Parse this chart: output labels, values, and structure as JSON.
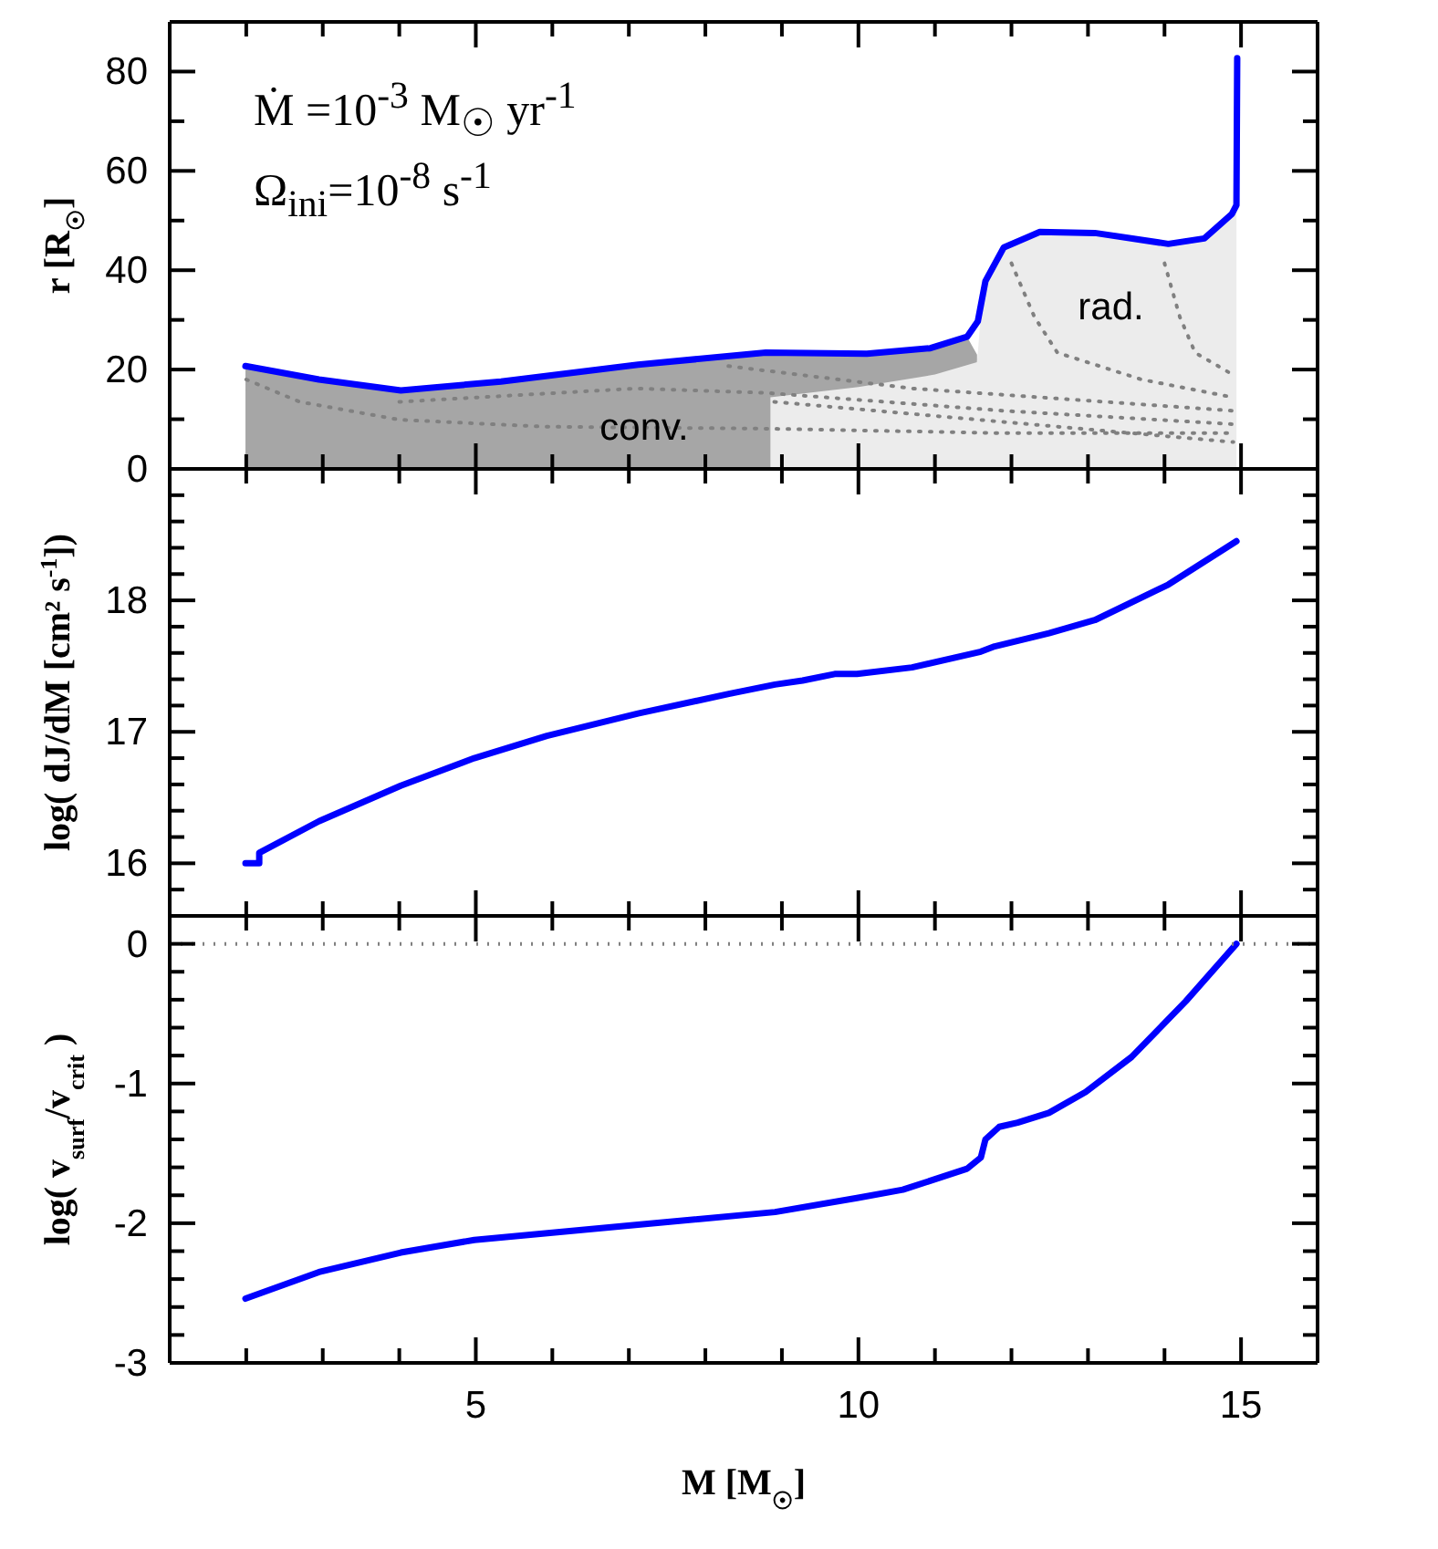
{
  "chart_data": [
    {
      "type": "line",
      "ylabel": "r [R$_{☉}$]",
      "xlim": [
        1,
        16
      ],
      "ylim": [
        0,
        90
      ],
      "tick_labels": "y",
      "xticks": [
        {
          "value": 2,
          "label": null
        },
        {
          "value": 3,
          "label": null
        },
        {
          "value": 4,
          "label": null
        },
        5,
        {
          "value": 6,
          "label": null
        },
        {
          "value": 7,
          "label": null
        },
        {
          "value": 8,
          "label": null
        },
        {
          "value": 9,
          "label": null
        },
        10,
        {
          "value": 11,
          "label": null
        },
        {
          "value": 12,
          "label": null
        },
        {
          "value": 13,
          "label": null
        },
        {
          "value": 14,
          "label": null
        },
        15
      ],
      "yticks": [
        0,
        {
          "value": 10,
          "label": null
        },
        20,
        {
          "value": 30,
          "label": null
        },
        40,
        {
          "value": 50,
          "label": null
        },
        60,
        {
          "value": 70,
          "label": null
        },
        80
      ],
      "annotations": [
        "Ṁ  =10$^{-3}$ M$_{☉}$ yr$^{-1}$",
        "Ω$_{ini}$=10$^{-8}$ s$^{-1}$",
        {
          "text": "conv.",
          "x": 7.2,
          "y": 8
        },
        "rad."
      ],
      "series": [
        {
          "type": "area",
          "color": "#a6a6a6",
          "x": [
            1.99,
            2.95,
            4.02,
            5.33,
            7.12,
            8.79,
            10.11,
            10.94,
            11.42,
            11.55
          ],
          "values": [
            20.7,
            18.0,
            15.8,
            17.6,
            21.0,
            23.4,
            23.2,
            24.3,
            26.6,
            23.0
          ]
        },
        {
          "type": "area",
          "color": "#ececec",
          "x": [
            8.85,
            10.0,
            11.0,
            11.55,
            11.6,
            11.66,
            11.9,
            12.37,
            13.09,
            14.05,
            14.52,
            14.88,
            14.94
          ],
          "values": [
            14.4,
            16.5,
            19.0,
            21.5,
            31.0,
            37.8,
            44.6,
            47.7,
            47.5,
            45.3,
            46.4,
            51.3,
            53.1
          ]
        },
        {
          "color": "#808080",
          "line_style": "dotted",
          "x": [
            2.0,
            2.7,
            4.0,
            5.9,
            8.8,
            11.9,
            14.9
          ],
          "values": [
            18.0,
            13.5,
            9.9,
            8.5,
            8.1,
            7.2,
            7.2
          ]
        },
        {
          "color": "#808080",
          "line_style": "dotted",
          "x": [
            4.0,
            7.1,
            8.8,
            11.9,
            14.9
          ],
          "values": [
            13.5,
            16.2,
            15.3,
            11.7,
            9.0
          ]
        },
        {
          "color": "#808080",
          "line_style": "dotted",
          "x": [
            8.3,
            10.7,
            14.9
          ],
          "values": [
            20.7,
            16.2,
            11.7
          ]
        },
        {
          "color": "#808080",
          "line_style": "dotted",
          "x": [
            8.9,
            14.9
          ],
          "values": [
            13.5,
            5.4
          ]
        },
        {
          "color": "#808080",
          "line_style": "dotted",
          "x": [
            12.0,
            12.3,
            12.6,
            13.7,
            14.9
          ],
          "values": [
            41.4,
            30.6,
            23.4,
            18.0,
            14.4
          ]
        },
        {
          "color": "#808080",
          "line_style": "dotted",
          "x": [
            14.0,
            14.2,
            14.4,
            14.9
          ],
          "values": [
            41.4,
            30.6,
            23.4,
            18.9
          ]
        },
        {
          "color": "#0000ff",
          "x": [
            1.99,
            2.95,
            4.02,
            5.33,
            7.12,
            8.79,
            10.11,
            10.94,
            11.42,
            11.56,
            11.66,
            11.9,
            12.37,
            13.09,
            14.05,
            14.52,
            14.88,
            14.94,
            14.95
          ],
          "values": [
            20.7,
            18.0,
            15.8,
            17.6,
            21.0,
            23.4,
            23.2,
            24.3,
            26.6,
            29.7,
            37.8,
            44.6,
            47.7,
            47.5,
            45.3,
            46.4,
            51.3,
            53.1,
            82.7
          ]
        }
      ]
    },
    {
      "type": "line",
      "ylabel": "log( dJ/dM [cm² s$^{-1}$])",
      "xlim": [
        1,
        16
      ],
      "ylim": [
        15.6,
        19
      ],
      "tick_labels": "y",
      "xticks": [
        {
          "value": 2,
          "label": null
        },
        {
          "value": 3,
          "label": null
        },
        {
          "value": 4,
          "label": null
        },
        5,
        {
          "value": 6,
          "label": null
        },
        {
          "value": 7,
          "label": null
        },
        {
          "value": 8,
          "label": null
        },
        {
          "value": 9,
          "label": null
        },
        10,
        {
          "value": 11,
          "label": null
        },
        {
          "value": 12,
          "label": null
        },
        {
          "value": 13,
          "label": null
        },
        {
          "value": 14,
          "label": null
        },
        15
      ],
      "yticks": [
        {
          "value": 15.8,
          "label": null
        },
        16,
        {
          "value": 16.2,
          "label": null
        },
        {
          "value": 16.4,
          "label": null
        },
        {
          "value": 16.6,
          "label": null
        },
        {
          "value": 16.8,
          "label": null
        },
        17,
        {
          "value": 17.2,
          "label": null
        },
        {
          "value": 17.4,
          "label": null
        },
        {
          "value": 17.6,
          "label": null
        },
        {
          "value": 17.8,
          "label": null
        },
        18,
        {
          "value": 18.2,
          "label": null
        },
        {
          "value": 18.4,
          "label": null
        },
        {
          "value": 18.6,
          "label": null
        },
        {
          "value": 18.8,
          "label": null
        }
      ],
      "series": [
        {
          "color": "#0000ff",
          "x": [
            1.99,
            2.17,
            2.17,
            2.95,
            4.02,
            4.98,
            5.93,
            7.12,
            8.32,
            8.91,
            9.27,
            9.69,
            9.98,
            10.7,
            11.6,
            11.78,
            12.49,
            13.09,
            14.05,
            14.94
          ],
          "values": [
            16.0,
            16.0,
            16.08,
            16.32,
            16.59,
            16.8,
            16.97,
            17.14,
            17.29,
            17.36,
            17.39,
            17.44,
            17.44,
            17.49,
            17.61,
            17.65,
            17.75,
            17.85,
            18.12,
            18.45
          ]
        }
      ]
    },
    {
      "type": "line",
      "ylabel": "log( v$_{surf}$/v$_{crit}$ )",
      "xlabel": "M  [M$_{☉}$]",
      "xlim": [
        1,
        16
      ],
      "ylim": [
        -3,
        0.2
      ],
      "xticks": [
        {
          "value": 2,
          "label": null
        },
        {
          "value": 3,
          "label": null
        },
        {
          "value": 4,
          "label": null
        },
        5,
        {
          "value": 6,
          "label": null
        },
        {
          "value": 7,
          "label": null
        },
        {
          "value": 8,
          "label": null
        },
        {
          "value": 9,
          "label": null
        },
        10,
        {
          "value": 11,
          "label": null
        },
        {
          "value": 12,
          "label": null
        },
        {
          "value": 13,
          "label": null
        },
        {
          "value": 14,
          "label": null
        },
        15
      ],
      "yticks": [
        -3,
        {
          "value": -2.8,
          "label": null
        },
        {
          "value": -2.6,
          "label": null
        },
        {
          "value": -2.4,
          "label": null
        },
        {
          "value": -2.2,
          "label": null
        },
        -2,
        {
          "value": -1.8,
          "label": null
        },
        {
          "value": -1.6,
          "label": null
        },
        {
          "value": -1.4,
          "label": null
        },
        {
          "value": -1.2,
          "label": null
        },
        -1,
        {
          "value": -0.8,
          "label": null
        },
        {
          "value": -0.6,
          "label": null
        },
        {
          "value": -0.4,
          "label": null
        },
        {
          "value": -0.2,
          "label": null
        },
        0
      ],
      "ref_lines": [
        {
          "axis": "y",
          "value": 0,
          "color": "#808080",
          "line_style": "dotted"
        }
      ],
      "series": [
        {
          "color": "#0000ff",
          "x": [
            1.99,
            2.95,
            4.02,
            4.98,
            7.12,
            8.91,
            9.98,
            10.58,
            11.42,
            11.6,
            11.66,
            11.84,
            12.08,
            12.49,
            12.97,
            13.57,
            14.28,
            14.94
          ],
          "values": [
            -2.54,
            -2.35,
            -2.21,
            -2.12,
            -2.01,
            -1.92,
            -1.82,
            -1.76,
            -1.61,
            -1.53,
            -1.4,
            -1.31,
            -1.28,
            -1.21,
            -1.06,
            -0.81,
            -0.41,
            0
          ]
        }
      ]
    }
  ]
}
